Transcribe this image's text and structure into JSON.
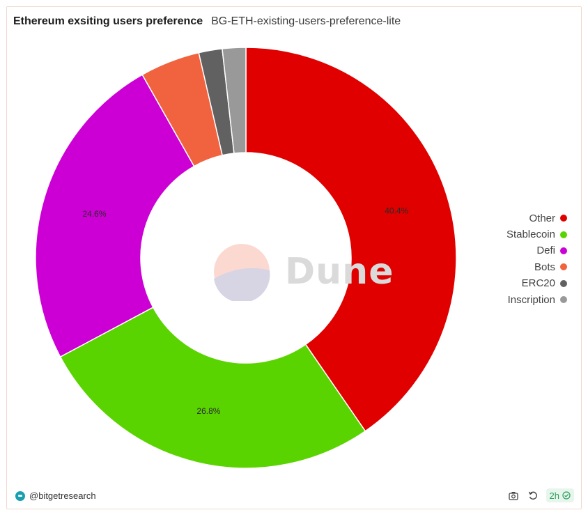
{
  "header": {
    "title": "Ethereum exsiting users preference",
    "subtitle": "BG-ETH-existing-users-preference-lite"
  },
  "watermark": {
    "text": "Dune"
  },
  "chart_data": {
    "type": "pie",
    "donut": true,
    "slices": [
      {
        "label": "Other",
        "value": 40.4,
        "color": "#e00000",
        "data_label": "40.4%"
      },
      {
        "label": "Stablecoin",
        "value": 26.8,
        "color": "#5ad400",
        "data_label": "26.8%"
      },
      {
        "label": "Defi",
        "value": 24.6,
        "color": "#cc00d4",
        "data_label": "24.6%"
      },
      {
        "label": "Bots",
        "value": 4.6,
        "color": "#f1623f",
        "data_label": ""
      },
      {
        "label": "ERC20",
        "value": 1.8,
        "color": "#616161",
        "data_label": ""
      },
      {
        "label": "Inscription",
        "value": 1.8,
        "color": "#999999",
        "data_label": ""
      }
    ],
    "legend_position": "right"
  },
  "footer": {
    "author": "@bitgetresearch",
    "refresh_label": "2h",
    "icons": {
      "brand": "bitget-avatar-icon",
      "camera": "camera-icon",
      "refresh": "refresh-icon",
      "check": "check-circle-icon"
    }
  }
}
